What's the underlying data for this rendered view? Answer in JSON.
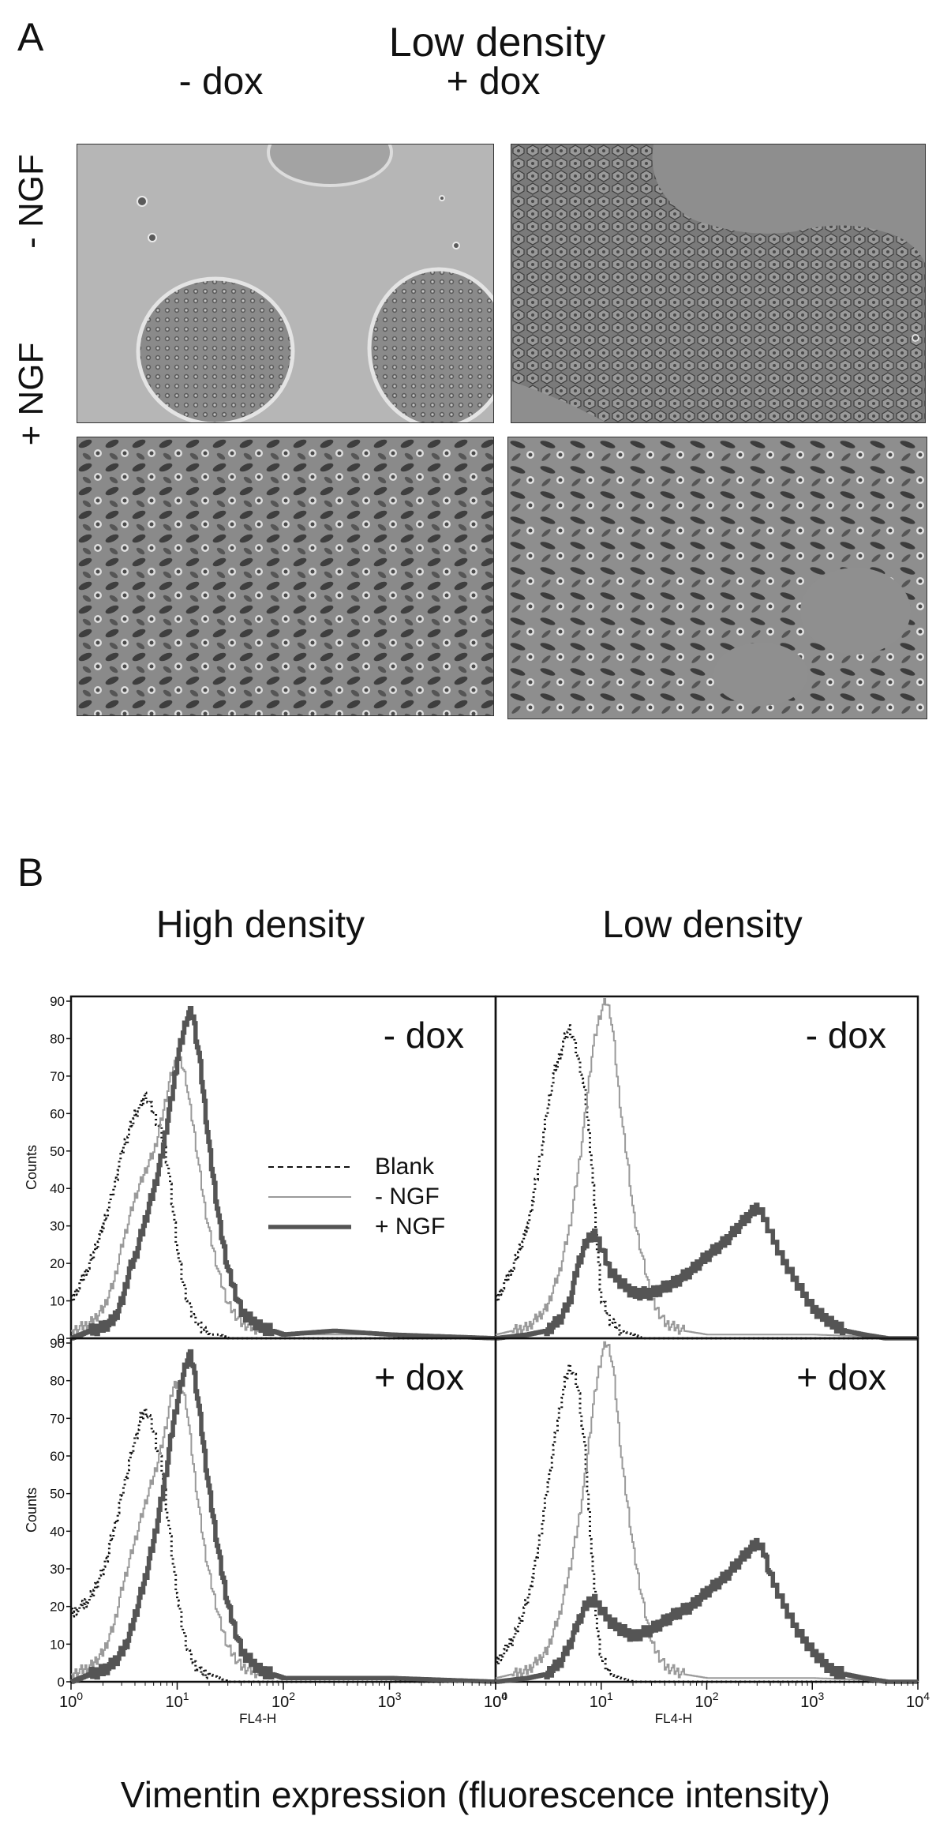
{
  "panel_a": {
    "letter": "A",
    "title": "Low density",
    "columns": [
      "- dox",
      "+ dox"
    ],
    "rows": [
      "- NGF",
      "+ NGF"
    ]
  },
  "panel_b": {
    "letter": "B",
    "columns": [
      "High density",
      "Low density"
    ],
    "xlabel": "Vimentin expression (fluorescence intensity)"
  },
  "chart_data": [
    {
      "type": "line",
      "density": "High density",
      "label": "- dox",
      "xlabel": "FL4-H",
      "ylabel": "Counts",
      "xscale": "log",
      "xlim": [
        1,
        10000
      ],
      "ylim": [
        0,
        90
      ],
      "xticks": [
        {
          "value": 1,
          "base": "10",
          "exp": "0"
        },
        {
          "value": 10,
          "base": "10",
          "exp": "1"
        },
        {
          "value": 100,
          "base": "10",
          "exp": "2"
        },
        {
          "value": 1000,
          "base": "10",
          "exp": "3"
        },
        {
          "value": 10000,
          "base": "10",
          "exp": "4"
        }
      ],
      "yticks": [
        "0",
        "10",
        "20",
        "30",
        "40",
        "50",
        "60",
        "70",
        "80",
        "90"
      ],
      "legend": {
        "placement": "center",
        "entries": [
          "Blank",
          "- NGF",
          "+ NGF"
        ]
      },
      "series": [
        {
          "name": "Blank",
          "style": "dotted",
          "color": "#111111",
          "x": [
            1,
            1.5,
            2,
            2.5,
            3,
            3.5,
            4,
            4.5,
            5,
            5.5,
            6,
            7,
            8,
            9,
            10,
            11,
            12,
            13,
            14,
            15,
            16,
            18,
            20,
            25,
            30,
            40,
            100,
            1000,
            10000
          ],
          "y": [
            10,
            20,
            30,
            40,
            50,
            55,
            60,
            62,
            65,
            62,
            60,
            55,
            47,
            35,
            23,
            16,
            12,
            8,
            6,
            5,
            3,
            2,
            1,
            1,
            0,
            0,
            0,
            0,
            0
          ]
        },
        {
          "name": "- NGF",
          "style": "thin",
          "color": "#9a9a9a",
          "x": [
            1,
            1.5,
            2,
            2.5,
            3,
            3.5,
            4,
            5,
            6,
            7,
            8,
            9,
            10,
            11,
            12,
            13,
            14,
            16,
            18,
            20,
            25,
            30,
            40,
            60,
            100,
            1000,
            10000
          ],
          "y": [
            2,
            4,
            8,
            15,
            25,
            32,
            38,
            45,
            50,
            58,
            66,
            72,
            75,
            73,
            69,
            62,
            57,
            45,
            35,
            28,
            16,
            9,
            4,
            2,
            1,
            1,
            0
          ]
        },
        {
          "name": "+ NGF",
          "style": "thick",
          "color": "#555555",
          "x": [
            1,
            1.5,
            2,
            2.5,
            3,
            3.5,
            4,
            5,
            6,
            7,
            8,
            9,
            10,
            11,
            12,
            13,
            14,
            15,
            16,
            18,
            20,
            25,
            30,
            40,
            60,
            100,
            300,
            1000,
            10000
          ],
          "y": [
            0,
            2,
            3,
            5,
            10,
            18,
            22,
            32,
            40,
            48,
            58,
            66,
            75,
            80,
            85,
            87,
            86,
            80,
            75,
            62,
            50,
            30,
            18,
            7,
            3,
            1,
            2,
            1,
            0
          ]
        }
      ]
    },
    {
      "type": "line",
      "density": "Low density",
      "label": "- dox",
      "xlabel": "FL4-H",
      "xscale": "log",
      "xlim": [
        1,
        10000
      ],
      "ylim": [
        0,
        90
      ],
      "series": [
        {
          "name": "Blank",
          "style": "dotted",
          "color": "#111111",
          "x": [
            1,
            1.5,
            2,
            2.5,
            3,
            3.5,
            4,
            4.5,
            5,
            6,
            7,
            8,
            9,
            10,
            12,
            15,
            20,
            25,
            30,
            40,
            100,
            10000
          ],
          "y": [
            10,
            20,
            30,
            45,
            60,
            70,
            75,
            80,
            83,
            75,
            65,
            48,
            25,
            10,
            5,
            2,
            1,
            0,
            0,
            0,
            0,
            0
          ]
        },
        {
          "name": "- NGF",
          "style": "thin",
          "color": "#9a9a9a",
          "x": [
            1,
            2,
            3,
            4,
            5,
            6,
            7,
            8,
            9,
            10,
            11,
            12,
            13,
            14,
            16,
            18,
            20,
            25,
            30,
            40,
            60,
            100,
            1000,
            10000
          ],
          "y": [
            1,
            3,
            8,
            18,
            30,
            45,
            60,
            75,
            83,
            88,
            90,
            87,
            80,
            70,
            55,
            45,
            33,
            20,
            10,
            4,
            2,
            1,
            1,
            0
          ]
        },
        {
          "name": "+ NGF",
          "style": "thick",
          "color": "#555555",
          "x": [
            1,
            2,
            3,
            4,
            5,
            6,
            7,
            8,
            9,
            10,
            12,
            15,
            20,
            30,
            50,
            70,
            100,
            150,
            200,
            250,
            300,
            350,
            400,
            500,
            700,
            1000,
            1500,
            2000,
            3000,
            5000,
            10000
          ],
          "y": [
            0,
            1,
            2,
            5,
            10,
            20,
            25,
            28,
            27,
            24,
            18,
            15,
            12,
            12,
            15,
            18,
            22,
            26,
            30,
            33,
            35,
            32,
            28,
            22,
            15,
            8,
            4,
            2,
            1,
            0,
            0
          ]
        }
      ]
    },
    {
      "type": "line",
      "density": "High density",
      "label": "+ dox",
      "xlabel": "FL4-H",
      "ylabel": "Counts",
      "xscale": "log",
      "xlim": [
        1,
        10000
      ],
      "ylim": [
        0,
        90
      ],
      "series": [
        {
          "name": "Blank",
          "style": "dotted",
          "color": "#111111",
          "x": [
            1,
            1.5,
            2,
            2.5,
            3,
            3.5,
            4,
            4.5,
            5,
            5.5,
            6,
            7,
            8,
            9,
            10,
            11,
            12,
            14,
            16,
            20,
            25,
            30,
            50,
            100,
            10000
          ],
          "y": [
            18,
            22,
            30,
            40,
            50,
            58,
            65,
            70,
            72,
            70,
            66,
            58,
            45,
            32,
            22,
            15,
            10,
            5,
            3,
            2,
            1,
            0,
            0,
            0,
            0
          ]
        },
        {
          "name": "- NGF",
          "style": "thin",
          "color": "#9a9a9a",
          "x": [
            1,
            1.5,
            2,
            2.5,
            3,
            3.5,
            4,
            5,
            6,
            7,
            8,
            9,
            10,
            11,
            12,
            13,
            14,
            16,
            18,
            20,
            25,
            30,
            40,
            60,
            100,
            1000,
            10000
          ],
          "y": [
            2,
            4,
            8,
            15,
            25,
            32,
            38,
            48,
            55,
            62,
            70,
            78,
            80,
            78,
            74,
            66,
            58,
            45,
            35,
            28,
            16,
            9,
            4,
            2,
            1,
            1,
            0
          ]
        },
        {
          "name": "+ NGF",
          "style": "thick",
          "color": "#555555",
          "x": [
            1,
            1.5,
            2,
            2.5,
            3,
            3.5,
            4,
            5,
            6,
            7,
            8,
            9,
            10,
            11,
            12,
            13,
            14,
            15,
            16,
            18,
            20,
            25,
            30,
            40,
            60,
            100,
            1000,
            10000
          ],
          "y": [
            0,
            2,
            3,
            5,
            8,
            12,
            18,
            28,
            38,
            48,
            58,
            68,
            75,
            80,
            85,
            87,
            84,
            78,
            72,
            60,
            50,
            32,
            20,
            8,
            3,
            1,
            1,
            0
          ]
        }
      ]
    },
    {
      "type": "line",
      "density": "Low density",
      "label": "+ dox",
      "xlabel": "FL4-H",
      "xscale": "log",
      "xlim": [
        1,
        10000
      ],
      "ylim": [
        0,
        90
      ],
      "series": [
        {
          "name": "Blank",
          "style": "dotted",
          "color": "#111111",
          "x": [
            1,
            1.5,
            2,
            2.5,
            3,
            3.5,
            4,
            4.5,
            5,
            6,
            7,
            8,
            9,
            10,
            12,
            15,
            20,
            30,
            100,
            10000
          ],
          "y": [
            5,
            12,
            22,
            35,
            50,
            62,
            72,
            80,
            84,
            78,
            60,
            35,
            15,
            6,
            2,
            1,
            0,
            0,
            0,
            0
          ]
        },
        {
          "name": "- NGF",
          "style": "thin",
          "color": "#9a9a9a",
          "x": [
            1,
            2,
            3,
            4,
            5,
            6,
            7,
            8,
            9,
            10,
            11,
            12,
            13,
            14,
            16,
            18,
            20,
            25,
            30,
            40,
            60,
            100,
            1000,
            10000
          ],
          "y": [
            1,
            3,
            8,
            18,
            30,
            42,
            55,
            70,
            80,
            87,
            90,
            88,
            82,
            72,
            55,
            45,
            35,
            20,
            10,
            4,
            2,
            1,
            1,
            0
          ]
        },
        {
          "name": "+ NGF",
          "style": "thick",
          "color": "#555555",
          "x": [
            1,
            2,
            3,
            4,
            5,
            6,
            7,
            8,
            9,
            10,
            12,
            15,
            20,
            30,
            50,
            70,
            100,
            150,
            200,
            250,
            300,
            350,
            400,
            500,
            700,
            1000,
            1500,
            2000,
            3000,
            5000,
            10000
          ],
          "y": [
            0,
            1,
            2,
            5,
            10,
            16,
            20,
            22,
            21,
            19,
            16,
            14,
            12,
            14,
            18,
            20,
            24,
            28,
            32,
            35,
            37,
            34,
            28,
            22,
            14,
            8,
            3,
            2,
            1,
            0,
            0
          ]
        }
      ]
    }
  ]
}
